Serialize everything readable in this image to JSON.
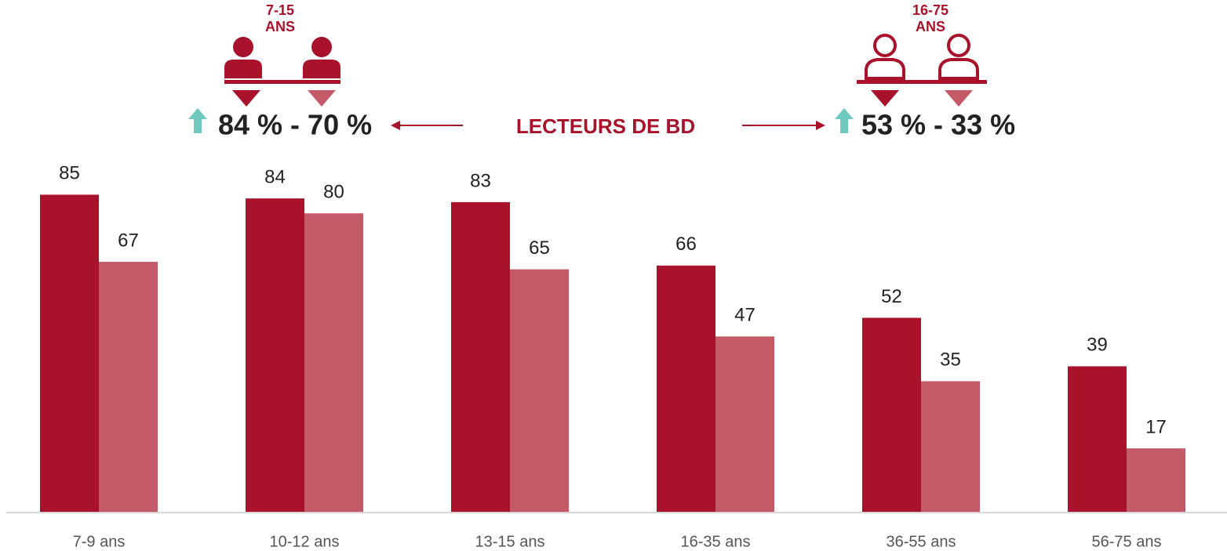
{
  "chart_data": {
    "type": "bar",
    "annotations": {
      "left_age": "7-15",
      "left_unit": "ANS",
      "left_stat": "84 % - 70 %",
      "center": "LECTEURS DE BD",
      "right_age": "16-75",
      "right_unit": "ANS",
      "right_stat": "53 % - 33 %"
    },
    "categories": [
      "7-9 ans",
      "10-12 ans",
      "13-15 ans",
      "16-35 ans",
      "36-55 ans",
      "56-75 ans"
    ],
    "series": [
      {
        "color": "#a8122a",
        "values": [
          85,
          84,
          83,
          66,
          52,
          39
        ]
      },
      {
        "color": "#c45a67",
        "values": [
          67,
          80,
          65,
          47,
          35,
          17
        ]
      }
    ],
    "ylim": [
      0,
      100
    ]
  }
}
